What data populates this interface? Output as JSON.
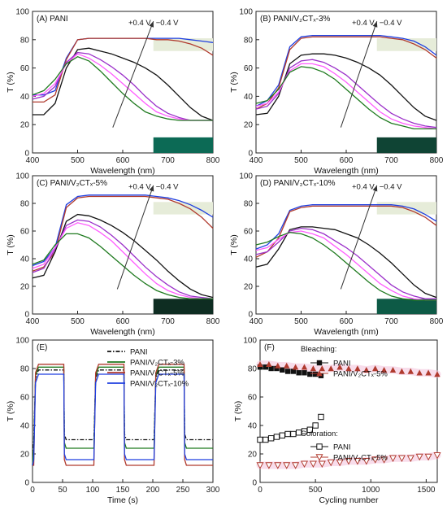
{
  "colors": {
    "PANI": "#111111",
    "PANI/V2CTx-3%": "#1f7a1f",
    "PANI/V2CTx-5%": "#b03a2e",
    "PANI/V2CTx-10%": "#1f3fe0",
    "mid1": "#9b30c9",
    "mid2": "#ff5cff",
    "swatch_bleached": "#e6ecd9",
    "swatch_colored_A": "#0c6a55",
    "swatch_colored_B": "#0f4434",
    "swatch_colored_C": "#0e2d22",
    "swatch_colored_D": "#0d5a46"
  },
  "chart_data": [
    {
      "id": "A",
      "type": "line",
      "panel_label": "(A)",
      "title": "PANI",
      "voltage_label": "+0.4 V",
      "voltage_label2": "−0.4 V",
      "xlabel": "Wavelength (nm)",
      "ylabel": "T (%)",
      "xlim": [
        400,
        800
      ],
      "ylim": [
        0,
        100
      ],
      "xticks": [
        400,
        500,
        600,
        700,
        800
      ],
      "yticks": [
        0,
        20,
        40,
        60,
        80,
        100
      ],
      "x": [
        400,
        425,
        450,
        475,
        500,
        525,
        550,
        575,
        600,
        625,
        650,
        675,
        700,
        725,
        750,
        775,
        800
      ],
      "series": [
        {
          "color": "#1f3fe0",
          "values": [
            41,
            41,
            44,
            67,
            80,
            81,
            81,
            81,
            81,
            81,
            81,
            81,
            81,
            81,
            80,
            79,
            78
          ]
        },
        {
          "color": "#b03a2e",
          "values": [
            36,
            36,
            41,
            66,
            80,
            81,
            81,
            81,
            81,
            81,
            81,
            80,
            80,
            79,
            77,
            74,
            69
          ]
        },
        {
          "color": "#111111",
          "values": [
            27,
            27,
            35,
            60,
            73,
            74,
            72,
            70,
            67,
            64,
            60,
            55,
            48,
            40,
            32,
            26,
            23
          ]
        },
        {
          "color": "#9b30c9",
          "values": [
            38,
            40,
            47,
            64,
            71,
            70,
            66,
            61,
            55,
            48,
            40,
            33,
            28,
            25,
            23,
            23,
            23
          ]
        },
        {
          "color": "#ff5cff",
          "values": [
            40,
            42,
            49,
            63,
            70,
            67,
            62,
            56,
            49,
            42,
            35,
            29,
            26,
            24,
            23,
            23,
            23
          ]
        },
        {
          "color": "#1f7a1f",
          "values": [
            41,
            44,
            52,
            63,
            68,
            65,
            58,
            50,
            42,
            35,
            29,
            26,
            24,
            23,
            23,
            23,
            23
          ]
        }
      ]
    },
    {
      "id": "B",
      "type": "line",
      "panel_label": "(B)",
      "title": "PANI/V₂CTₓ-3%",
      "voltage_label": "+0.4 V",
      "voltage_label2": "−0.4 V",
      "xlabel": "Wavelength (nm)",
      "ylabel": "T (%)",
      "xlim": [
        400,
        800
      ],
      "ylim": [
        0,
        100
      ],
      "xticks": [
        400,
        500,
        600,
        700,
        800
      ],
      "yticks": [
        0,
        20,
        40,
        60,
        80,
        100
      ],
      "x": [
        400,
        425,
        450,
        475,
        500,
        525,
        550,
        575,
        600,
        625,
        650,
        675,
        700,
        725,
        750,
        775,
        800
      ],
      "series": [
        {
          "color": "#1f3fe0",
          "values": [
            33,
            37,
            48,
            75,
            82,
            83,
            83,
            83,
            83,
            83,
            83,
            83,
            82,
            81,
            79,
            75,
            69
          ]
        },
        {
          "color": "#b03a2e",
          "values": [
            31,
            35,
            46,
            73,
            81,
            82,
            82,
            82,
            82,
            82,
            82,
            82,
            81,
            80,
            77,
            73,
            67
          ]
        },
        {
          "color": "#111111",
          "values": [
            27,
            28,
            40,
            63,
            69,
            70,
            70,
            69,
            67,
            64,
            60,
            55,
            48,
            40,
            32,
            26,
            23
          ]
        },
        {
          "color": "#9b30c9",
          "values": [
            31,
            33,
            42,
            60,
            65,
            66,
            64,
            60,
            55,
            48,
            41,
            34,
            28,
            24,
            21,
            19,
            18
          ]
        },
        {
          "color": "#ff5cff",
          "values": [
            33,
            35,
            43,
            58,
            63,
            63,
            61,
            56,
            50,
            43,
            36,
            29,
            24,
            21,
            19,
            18,
            17
          ]
        },
        {
          "color": "#1f7a1f",
          "values": [
            35,
            37,
            45,
            57,
            61,
            60,
            57,
            52,
            45,
            38,
            31,
            25,
            21,
            19,
            17,
            17,
            17
          ]
        }
      ]
    },
    {
      "id": "C",
      "type": "line",
      "panel_label": "(C)",
      "title": "PANI/V₂CTₓ-5%",
      "voltage_label": "+0.4 V",
      "voltage_label2": "−0.4 V",
      "xlabel": "Wavelength (nm)",
      "ylabel": "T (%)",
      "xlim": [
        400,
        800
      ],
      "ylim": [
        0,
        100
      ],
      "xticks": [
        400,
        500,
        600,
        700,
        800
      ],
      "yticks": [
        0,
        20,
        40,
        60,
        80,
        100
      ],
      "x": [
        400,
        425,
        450,
        475,
        500,
        525,
        550,
        575,
        600,
        625,
        650,
        675,
        700,
        725,
        750,
        775,
        800
      ],
      "series": [
        {
          "color": "#1f3fe0",
          "values": [
            35,
            38,
            48,
            79,
            85,
            86,
            86,
            86,
            86,
            86,
            86,
            85,
            84,
            82,
            79,
            75,
            70
          ]
        },
        {
          "color": "#b03a2e",
          "values": [
            31,
            34,
            45,
            77,
            84,
            85,
            85,
            85,
            85,
            85,
            85,
            84,
            83,
            80,
            76,
            70,
            62
          ]
        },
        {
          "color": "#111111",
          "values": [
            26,
            28,
            45,
            67,
            72,
            71,
            68,
            64,
            59,
            53,
            46,
            39,
            31,
            24,
            18,
            14,
            12
          ]
        },
        {
          "color": "#9b30c9",
          "values": [
            30,
            33,
            47,
            64,
            68,
            67,
            63,
            57,
            50,
            42,
            34,
            27,
            21,
            16,
            13,
            12,
            11
          ]
        },
        {
          "color": "#ff5cff",
          "values": [
            33,
            36,
            48,
            62,
            66,
            64,
            59,
            53,
            45,
            37,
            29,
            22,
            17,
            14,
            12,
            11,
            11
          ]
        },
        {
          "color": "#1f7a1f",
          "values": [
            36,
            39,
            50,
            58,
            58,
            55,
            49,
            42,
            35,
            28,
            22,
            17,
            14,
            12,
            11,
            11,
            11
          ]
        }
      ]
    },
    {
      "id": "D",
      "type": "line",
      "panel_label": "",
      "title": "(D) PANI/V₂CTₓ-10%",
      "voltage_label": "+0.4 V",
      "voltage_label2": "−0.4 V",
      "xlabel": "Wavelength (nm)",
      "ylabel": "T (%)",
      "xlim": [
        400,
        800
      ],
      "ylim": [
        0,
        100
      ],
      "xticks": [
        400,
        500,
        600,
        700,
        800
      ],
      "yticks": [
        0,
        20,
        40,
        60,
        80,
        100
      ],
      "x": [
        400,
        425,
        450,
        475,
        500,
        525,
        550,
        575,
        600,
        625,
        650,
        675,
        700,
        725,
        750,
        775,
        800
      ],
      "series": [
        {
          "color": "#1f3fe0",
          "values": [
            47,
            50,
            58,
            75,
            78,
            79,
            79,
            79,
            79,
            79,
            79,
            79,
            79,
            78,
            76,
            72,
            67
          ]
        },
        {
          "color": "#b03a2e",
          "values": [
            41,
            45,
            55,
            74,
            77,
            78,
            78,
            78,
            78,
            78,
            78,
            78,
            78,
            77,
            74,
            70,
            64
          ]
        },
        {
          "color": "#111111",
          "values": [
            34,
            36,
            47,
            61,
            63,
            63,
            62,
            61,
            58,
            55,
            50,
            44,
            37,
            29,
            21,
            15,
            12
          ]
        },
        {
          "color": "#9b30c9",
          "values": [
            43,
            45,
            52,
            60,
            62,
            61,
            58,
            53,
            48,
            42,
            35,
            28,
            21,
            16,
            13,
            11,
            11
          ]
        },
        {
          "color": "#ff5cff",
          "values": [
            46,
            48,
            54,
            59,
            60,
            58,
            55,
            49,
            43,
            36,
            29,
            22,
            17,
            13,
            11,
            10,
            10
          ]
        },
        {
          "color": "#1f7a1f",
          "values": [
            50,
            52,
            56,
            59,
            58,
            55,
            50,
            44,
            37,
            30,
            23,
            17,
            13,
            11,
            10,
            10,
            10
          ]
        }
      ]
    },
    {
      "id": "E",
      "type": "line",
      "panel_label": "(E)",
      "xlabel": "Time (s)",
      "ylabel": "T (%)",
      "xlim": [
        0,
        300
      ],
      "ylim": [
        0,
        100
      ],
      "xticks": [
        0,
        50,
        100,
        150,
        200,
        250,
        300
      ],
      "yticks": [
        0,
        20,
        40,
        60,
        80,
        100
      ],
      "legend": [
        "PANI",
        "PANI/V₂CTₓ-3%",
        "PANI/V₂CTₓ-5%",
        "PANI/V₂CTₓ-10%"
      ],
      "legend_position": "top-right",
      "period": 100,
      "on_duration": 50,
      "series": [
        {
          "name": "PANI",
          "color": "#111111",
          "dashed": true,
          "high": 79,
          "low": 30
        },
        {
          "name": "PANI/V₂CTₓ-3%",
          "color": "#1f7a1f",
          "dashed": false,
          "high": 81,
          "low": 24
        },
        {
          "name": "PANI/V₂CTₓ-5%",
          "color": "#b03a2e",
          "dashed": false,
          "high": 83,
          "low": 12
        },
        {
          "name": "PANI/V₂CTₓ-10%",
          "color": "#1f3fe0",
          "dashed": false,
          "high": 76,
          "low": 16
        }
      ]
    },
    {
      "id": "F",
      "type": "scatter",
      "panel_label": "(F)",
      "xlabel": "Cycling number",
      "ylabel": "T (%)",
      "xlim": [
        0,
        1600
      ],
      "ylim": [
        0,
        100
      ],
      "xticks": [
        0,
        500,
        1000,
        1500
      ],
      "yticks": [
        0,
        20,
        40,
        60,
        80,
        100
      ],
      "legend_title_1": "Bleaching:",
      "legend_title_2": "Coloration:",
      "series": [
        {
          "name": "PANI",
          "group": "bleaching",
          "marker": "filled-square",
          "color": "#111111",
          "x": [
            0,
            50,
            100,
            150,
            200,
            250,
            300,
            350,
            400,
            450,
            500,
            550
          ],
          "y": [
            81,
            81,
            80,
            80,
            79,
            78,
            78,
            77,
            77,
            76,
            76,
            75
          ]
        },
        {
          "name": "PANI/V₂CTₓ-5%",
          "group": "bleaching",
          "marker": "filled-triangle",
          "color": "#b03a2e",
          "x": [
            0,
            80,
            160,
            240,
            320,
            400,
            480,
            560,
            640,
            720,
            800,
            880,
            960,
            1040,
            1120,
            1200,
            1280,
            1360,
            1440,
            1520,
            1600
          ],
          "y": [
            83,
            83,
            82,
            82,
            81,
            81,
            80,
            80,
            80,
            81,
            80,
            80,
            79,
            80,
            79,
            79,
            78,
            78,
            77,
            77,
            76
          ]
        },
        {
          "name": "PANI",
          "group": "coloration",
          "marker": "open-square",
          "color": "#111111",
          "x": [
            0,
            50,
            100,
            150,
            200,
            250,
            300,
            350,
            400,
            450,
            500,
            550
          ],
          "y": [
            30,
            30,
            31,
            32,
            33,
            34,
            34,
            35,
            36,
            37,
            40,
            46
          ]
        },
        {
          "name": "PANI/V₂CTₓ-5%",
          "group": "coloration",
          "marker": "open-triangle-down",
          "color": "#b03a2e",
          "x": [
            0,
            80,
            160,
            240,
            320,
            400,
            480,
            560,
            640,
            720,
            800,
            880,
            960,
            1040,
            1120,
            1200,
            1280,
            1360,
            1440,
            1520,
            1600
          ],
          "y": [
            12,
            12,
            12,
            12,
            12,
            13,
            13,
            13,
            14,
            14,
            15,
            15,
            15,
            16,
            16,
            17,
            17,
            17,
            18,
            18,
            19
          ]
        }
      ]
    }
  ]
}
